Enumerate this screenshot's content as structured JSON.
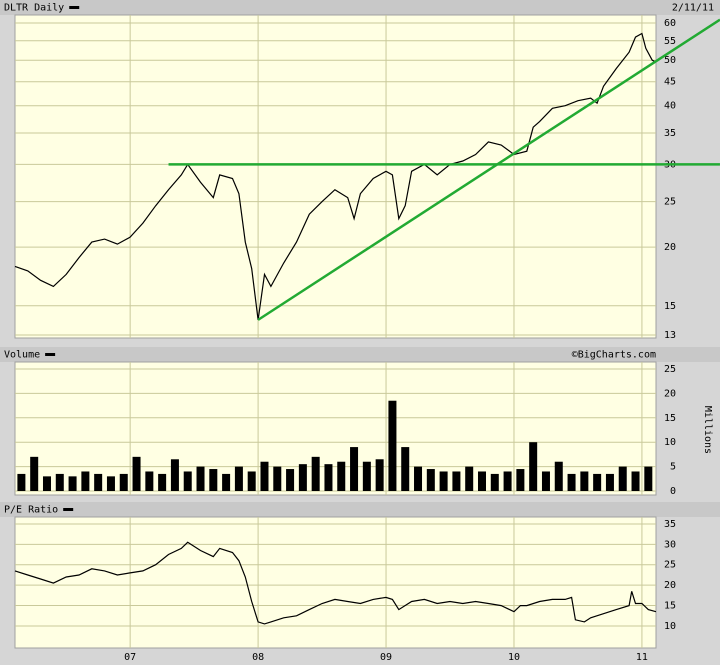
{
  "chart_data": [
    {
      "type": "line",
      "title": "DLTR Daily",
      "date": "2/11/11",
      "log_scale": true,
      "grid": true,
      "color": "#000000",
      "xlim": [
        2006.1,
        2011.11
      ],
      "xticks": [
        2007,
        2008,
        2009,
        2010,
        2011
      ],
      "ylim": [
        13,
        60
      ],
      "yticks": [
        13,
        15,
        20,
        25,
        30,
        35,
        40,
        45,
        50,
        55,
        60
      ],
      "x": [
        2006.1,
        2006.2,
        2006.3,
        2006.4,
        2006.5,
        2006.6,
        2006.7,
        2006.8,
        2006.9,
        2007.0,
        2007.1,
        2007.2,
        2007.3,
        2007.4,
        2007.45,
        2007.55,
        2007.65,
        2007.7,
        2007.8,
        2007.85,
        2007.9,
        2007.95,
        2008.0,
        2008.05,
        2008.1,
        2008.2,
        2008.3,
        2008.4,
        2008.5,
        2008.6,
        2008.7,
        2008.75,
        2008.8,
        2008.9,
        2009.0,
        2009.05,
        2009.1,
        2009.15,
        2009.2,
        2009.3,
        2009.4,
        2009.5,
        2009.6,
        2009.7,
        2009.8,
        2009.9,
        2010.0,
        2010.1,
        2010.15,
        2010.2,
        2010.3,
        2010.4,
        2010.5,
        2010.6,
        2010.65,
        2010.7,
        2010.8,
        2010.9,
        2010.95,
        2011.0,
        2011.03,
        2011.08,
        2011.11
      ],
      "values": [
        18.2,
        17.8,
        17.0,
        16.5,
        17.5,
        19.0,
        20.5,
        20.8,
        20.3,
        21.0,
        22.5,
        24.5,
        26.5,
        28.5,
        30.0,
        27.5,
        25.5,
        28.5,
        28.0,
        26.0,
        20.5,
        18.0,
        14.0,
        17.5,
        16.5,
        18.5,
        20.5,
        23.5,
        25.0,
        26.5,
        25.5,
        23.0,
        26.0,
        28.0,
        29.0,
        28.5,
        23.0,
        24.5,
        29.0,
        30.0,
        28.5,
        30.0,
        30.5,
        31.5,
        33.5,
        33.0,
        31.5,
        32.0,
        36.0,
        37.0,
        39.5,
        40.0,
        41.0,
        41.5,
        40.5,
        44.0,
        48.0,
        52.0,
        56.0,
        57.0,
        53.0,
        50.0,
        49.5
      ],
      "trendlines": [
        {
          "color": "#22aa33",
          "x": [
            2007.3,
            2011.61
          ],
          "y": [
            30,
            30
          ]
        },
        {
          "color": "#22aa33",
          "x": [
            2008.0,
            2011.61
          ],
          "y": [
            14,
            61
          ]
        }
      ]
    },
    {
      "type": "bar",
      "title": "Volume",
      "source": "©BigCharts.com",
      "y_label": "Millions",
      "grid": true,
      "color": "#000000",
      "xlim": [
        2006.1,
        2011.11
      ],
      "xticks": [
        2007,
        2008,
        2009,
        2010,
        2011
      ],
      "ylim": [
        0,
        25
      ],
      "yticks": [
        0,
        5,
        10,
        15,
        20,
        25
      ],
      "x": [
        2006.15,
        2006.25,
        2006.35,
        2006.45,
        2006.55,
        2006.65,
        2006.75,
        2006.85,
        2006.95,
        2007.05,
        2007.15,
        2007.25,
        2007.35,
        2007.45,
        2007.55,
        2007.65,
        2007.75,
        2007.85,
        2007.95,
        2008.05,
        2008.15,
        2008.25,
        2008.35,
        2008.45,
        2008.55,
        2008.65,
        2008.75,
        2008.85,
        2008.95,
        2009.05,
        2009.15,
        2009.25,
        2009.35,
        2009.45,
        2009.55,
        2009.65,
        2009.75,
        2009.85,
        2009.95,
        2010.05,
        2010.15,
        2010.25,
        2010.35,
        2010.45,
        2010.55,
        2010.65,
        2010.75,
        2010.85,
        2010.95,
        2011.05
      ],
      "values": [
        3.5,
        7,
        3,
        3.5,
        3,
        4,
        3.5,
        3,
        3.5,
        7,
        4,
        3.5,
        6.5,
        4,
        5,
        4.5,
        3.5,
        5,
        4,
        6,
        5,
        4.5,
        5.5,
        7,
        5.5,
        6,
        9,
        6,
        6.5,
        18.5,
        9,
        5,
        4.5,
        4,
        4,
        5,
        4,
        3.5,
        4,
        4.5,
        10,
        4,
        6,
        3.5,
        4,
        3.5,
        3.5,
        5,
        4,
        5
      ]
    },
    {
      "type": "line",
      "title": "P/E Ratio",
      "grid": true,
      "color": "#000000",
      "xlim": [
        2006.1,
        2011.11
      ],
      "xticks": [
        {
          "value": 2007,
          "label": "07"
        },
        {
          "value": 2008,
          "label": "08"
        },
        {
          "value": 2009,
          "label": "09"
        },
        {
          "value": 2010,
          "label": "10"
        },
        {
          "value": 2011,
          "label": "11"
        }
      ],
      "ylim": [
        4.6,
        36.7
      ],
      "yticks": [
        10,
        15,
        20,
        25,
        30,
        35
      ],
      "x": [
        2006.1,
        2006.2,
        2006.3,
        2006.4,
        2006.5,
        2006.6,
        2006.7,
        2006.8,
        2006.9,
        2007.0,
        2007.1,
        2007.2,
        2007.3,
        2007.4,
        2007.45,
        2007.55,
        2007.65,
        2007.7,
        2007.8,
        2007.85,
        2007.9,
        2007.95,
        2008.0,
        2008.05,
        2008.1,
        2008.2,
        2008.3,
        2008.4,
        2008.5,
        2008.6,
        2008.7,
        2008.8,
        2008.9,
        2009.0,
        2009.05,
        2009.1,
        2009.2,
        2009.3,
        2009.4,
        2009.5,
        2009.6,
        2009.7,
        2009.8,
        2009.9,
        2010.0,
        2010.05,
        2010.1,
        2010.2,
        2010.3,
        2010.4,
        2010.45,
        2010.48,
        2010.55,
        2010.6,
        2010.7,
        2010.8,
        2010.9,
        2010.92,
        2010.95,
        2011.0,
        2011.05,
        2011.11
      ],
      "values": [
        23.5,
        22.5,
        21.5,
        20.5,
        22,
        22.5,
        24,
        23.5,
        22.5,
        23,
        23.5,
        25,
        27.5,
        29,
        30.5,
        28.5,
        27,
        29,
        28,
        26,
        22,
        16,
        11,
        10.5,
        11,
        12,
        12.5,
        14,
        15.5,
        16.5,
        16,
        15.5,
        16.5,
        17,
        16.5,
        14,
        16,
        16.5,
        15.5,
        16,
        15.5,
        16,
        15.5,
        15,
        13.5,
        15,
        15,
        16,
        16.5,
        16.5,
        17,
        11.5,
        11,
        12,
        13,
        14,
        15,
        18.5,
        15.5,
        15.5,
        14,
        13.5
      ]
    }
  ]
}
